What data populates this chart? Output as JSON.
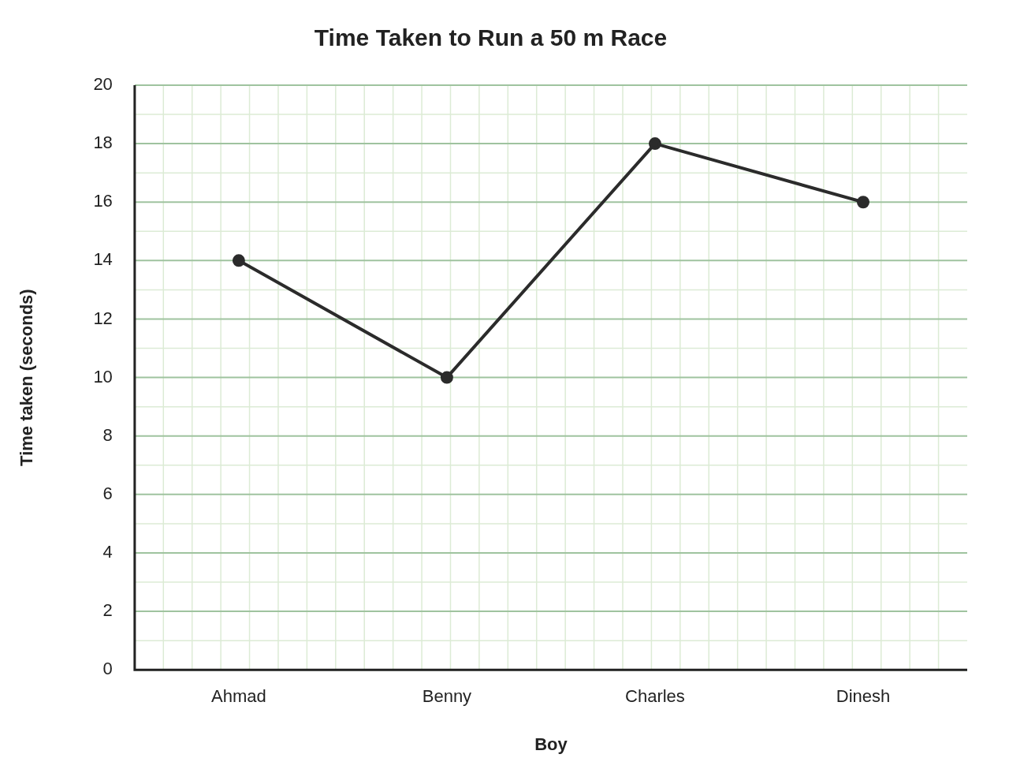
{
  "chart_data": {
    "type": "line",
    "title": "Time Taken to Run a 50 m Race",
    "xlabel": "Boy",
    "ylabel": "Time taken (seconds)",
    "categories": [
      "Ahmad",
      "Benny",
      "Charles",
      "Dinesh"
    ],
    "series": [
      {
        "color": "#2b2b2b",
        "values": [
          14,
          10,
          18,
          16
        ]
      }
    ],
    "ylim": [
      0,
      20
    ],
    "yticks": [
      0,
      2,
      4,
      6,
      8,
      10,
      12,
      14,
      16,
      18,
      20
    ],
    "grid": true,
    "legend": false,
    "marker": "circle",
    "line_style": "solid"
  }
}
